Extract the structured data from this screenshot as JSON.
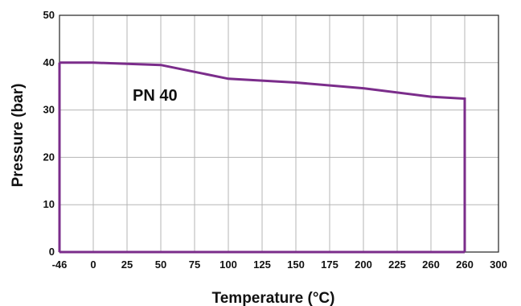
{
  "chart_data": {
    "type": "line",
    "title": "",
    "xlabel": "Temperature (°C)",
    "ylabel": "Pressure (bar)",
    "x_tick_labels": [
      "-46",
      "0",
      "25",
      "50",
      "75",
      "100",
      "125",
      "150",
      "175",
      "200",
      "225",
      "260",
      "260",
      "300"
    ],
    "y_ticks": [
      0,
      10,
      20,
      30,
      40,
      50
    ],
    "ylim": [
      0,
      50
    ],
    "grid": true,
    "annotation": "PN 40",
    "series": [
      {
        "color": "#7B2D8B",
        "points": [
          {
            "x": "-46",
            "y": 40
          },
          {
            "x": "0",
            "y": 40
          },
          {
            "x": "50",
            "y": 39.5
          },
          {
            "x": "100",
            "y": 36.6
          },
          {
            "x": "150",
            "y": 35.8
          },
          {
            "x": "200",
            "y": 34.6
          },
          {
            "x": "260",
            "y": 32.8
          },
          {
            "x": "260",
            "y": 32.4,
            "note": "right end of curve"
          },
          {
            "x": "260",
            "y": 0,
            "note": "drops to zero"
          }
        ]
      }
    ],
    "colors": {
      "line": "#7B2D8B",
      "grid": "#b5b5b5",
      "axis": "#222222"
    }
  }
}
